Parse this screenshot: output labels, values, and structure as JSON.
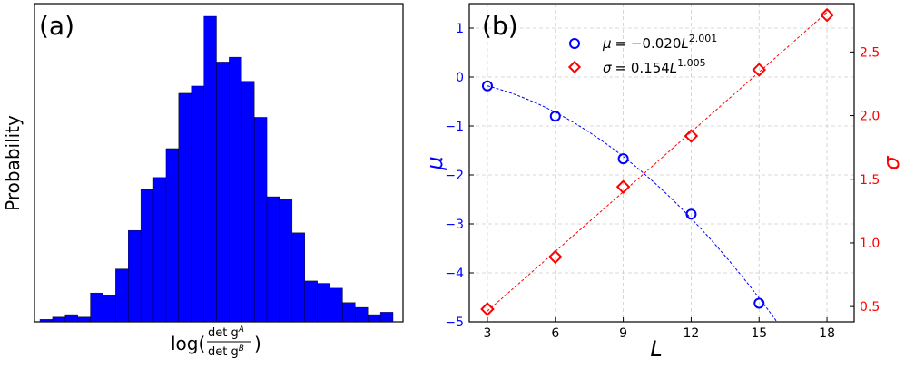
{
  "chart_data": [
    {
      "type": "bar",
      "panel": "(a)",
      "xlabel": "log(det g^A / det g^B)",
      "xlabel_parts": {
        "prefix": "log(",
        "numerator": "det g",
        "num_sup": "A",
        "denominator": "det g",
        "den_sup": "B",
        "suffix": ")"
      },
      "ylabel": "Probability",
      "color": "#0000ff",
      "bar_edge_color": "#000000",
      "values": [
        1,
        2,
        3,
        2,
        12,
        11,
        22,
        38,
        55,
        60,
        72,
        95,
        98,
        127,
        108,
        110,
        100,
        85,
        52,
        51,
        37,
        17,
        16,
        14,
        8,
        6,
        3,
        4
      ]
    },
    {
      "type": "scatter",
      "panel": "(b)",
      "xlabel": "L",
      "ylabel_left": "μ",
      "ylabel_right": "σ",
      "xlim": [
        2.2,
        19.2
      ],
      "ylim_left": [
        -5,
        1.5
      ],
      "ylim_right": [
        0.38,
        2.88
      ],
      "xticks": [
        "3",
        "6",
        "9",
        "12",
        "15",
        "18"
      ],
      "yticks_left": [
        "1",
        "0",
        "−1",
        "−2",
        "−3",
        "−4",
        "−5"
      ],
      "yticks_right": [
        "0.5",
        "1.0",
        "1.5",
        "2.0",
        "2.5"
      ],
      "grid": true,
      "legend_position": "top-center",
      "series": [
        {
          "name": "μ",
          "legend_label": {
            "sym": "μ",
            "eq": "= −0.020",
            "base": "L",
            "exp": "2.001"
          },
          "axis": "left",
          "marker": "circle",
          "color": "#0000ff",
          "fit": {
            "a": -0.02,
            "b": 2.001
          },
          "x": [
            3,
            6,
            9,
            12,
            15
          ],
          "y": [
            -0.18,
            -0.8,
            -1.67,
            -2.8,
            -4.62
          ]
        },
        {
          "name": "σ",
          "legend_label": {
            "sym": "σ",
            "eq": "= 0.154",
            "base": "L",
            "exp": "1.005"
          },
          "axis": "right",
          "marker": "diamond",
          "color": "#ff0000",
          "fit": {
            "a": 0.154,
            "b": 1.005
          },
          "x": [
            3,
            6,
            9,
            12,
            15,
            18
          ],
          "y": [
            0.48,
            0.89,
            1.44,
            1.84,
            2.36,
            2.79
          ]
        }
      ]
    }
  ]
}
